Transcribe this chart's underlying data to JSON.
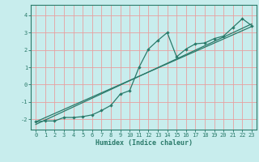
{
  "xlabel": "Humidex (Indice chaleur)",
  "bg_color": "#c8eded",
  "grid_color": "#e8a0a0",
  "line_color": "#2a7a6a",
  "xlim": [
    -0.5,
    23.5
  ],
  "ylim": [
    -2.6,
    4.6
  ],
  "yticks": [
    -2,
    -1,
    0,
    1,
    2,
    3,
    4
  ],
  "xticks": [
    0,
    1,
    2,
    3,
    4,
    5,
    6,
    7,
    8,
    9,
    10,
    11,
    12,
    13,
    14,
    15,
    16,
    17,
    18,
    19,
    20,
    21,
    22,
    23
  ],
  "main_x": [
    0,
    1,
    2,
    3,
    4,
    5,
    6,
    7,
    8,
    9,
    10,
    11,
    12,
    13,
    14,
    15,
    16,
    17,
    18,
    19,
    20,
    21,
    22,
    23
  ],
  "main_y": [
    -2.15,
    -2.1,
    -2.1,
    -1.9,
    -1.9,
    -1.85,
    -1.75,
    -1.5,
    -1.2,
    -0.55,
    -0.35,
    1.0,
    2.05,
    2.55,
    3.0,
    1.6,
    2.05,
    2.35,
    2.4,
    2.65,
    2.8,
    3.3,
    3.8,
    3.4
  ],
  "line1_x": [
    0,
    23
  ],
  "line1_y": [
    -2.15,
    3.35
  ],
  "line2_x": [
    0,
    23
  ],
  "line2_y": [
    -2.3,
    3.5
  ]
}
